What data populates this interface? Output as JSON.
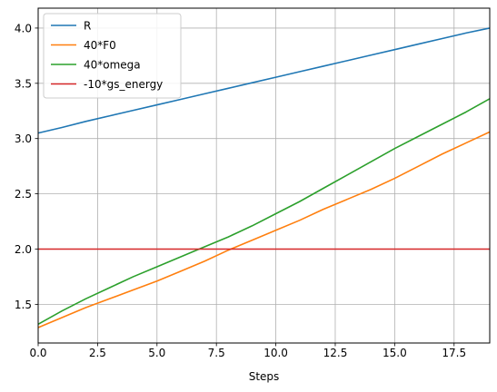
{
  "chart_data": {
    "type": "line",
    "xlabel": "Steps",
    "ylabel": "",
    "title": "",
    "xlim": [
      0,
      19
    ],
    "ylim": [
      1.15,
      4.18
    ],
    "xticks": [
      0.0,
      2.5,
      5.0,
      7.5,
      10.0,
      12.5,
      15.0,
      17.5
    ],
    "xtick_labels": [
      "0.0",
      "2.5",
      "5.0",
      "7.5",
      "10.0",
      "12.5",
      "15.0",
      "17.5"
    ],
    "yticks": [
      1.5,
      2.0,
      2.5,
      3.0,
      3.5,
      4.0
    ],
    "ytick_labels": [
      "1.5",
      "2.0",
      "2.5",
      "3.0",
      "3.5",
      "4.0"
    ],
    "grid": true,
    "legend_position": "upper-left",
    "x": [
      0,
      1,
      2,
      3,
      4,
      5,
      6,
      7,
      8,
      9,
      10,
      11,
      12,
      13,
      14,
      15,
      16,
      17,
      18,
      19
    ],
    "series": [
      {
        "name": "R",
        "color": "#1f77b4",
        "values": [
          3.05,
          3.1,
          3.155,
          3.205,
          3.255,
          3.305,
          3.355,
          3.405,
          3.455,
          3.505,
          3.555,
          3.605,
          3.655,
          3.705,
          3.755,
          3.805,
          3.855,
          3.905,
          3.955,
          4.0
        ]
      },
      {
        "name": "40*F0",
        "color": "#ff7f0e",
        "values": [
          1.29,
          1.38,
          1.47,
          1.55,
          1.63,
          1.71,
          1.8,
          1.89,
          1.99,
          2.08,
          2.17,
          2.26,
          2.36,
          2.45,
          2.54,
          2.64,
          2.75,
          2.86,
          2.96,
          3.06
        ]
      },
      {
        "name": "40*omega",
        "color": "#2ca02c",
        "values": [
          1.32,
          1.44,
          1.55,
          1.65,
          1.75,
          1.84,
          1.93,
          2.02,
          2.11,
          2.21,
          2.32,
          2.43,
          2.55,
          2.67,
          2.79,
          2.91,
          3.02,
          3.13,
          3.24,
          3.36
        ]
      },
      {
        "name": "-10*gs_energy",
        "color": "#d62728",
        "values": [
          2.0,
          2.0,
          2.0,
          2.0,
          2.0,
          2.0,
          2.0,
          2.0,
          2.0,
          2.0,
          2.0,
          2.0,
          2.0,
          2.0,
          2.0,
          2.0,
          2.0,
          2.0,
          2.0,
          2.0
        ]
      }
    ]
  }
}
